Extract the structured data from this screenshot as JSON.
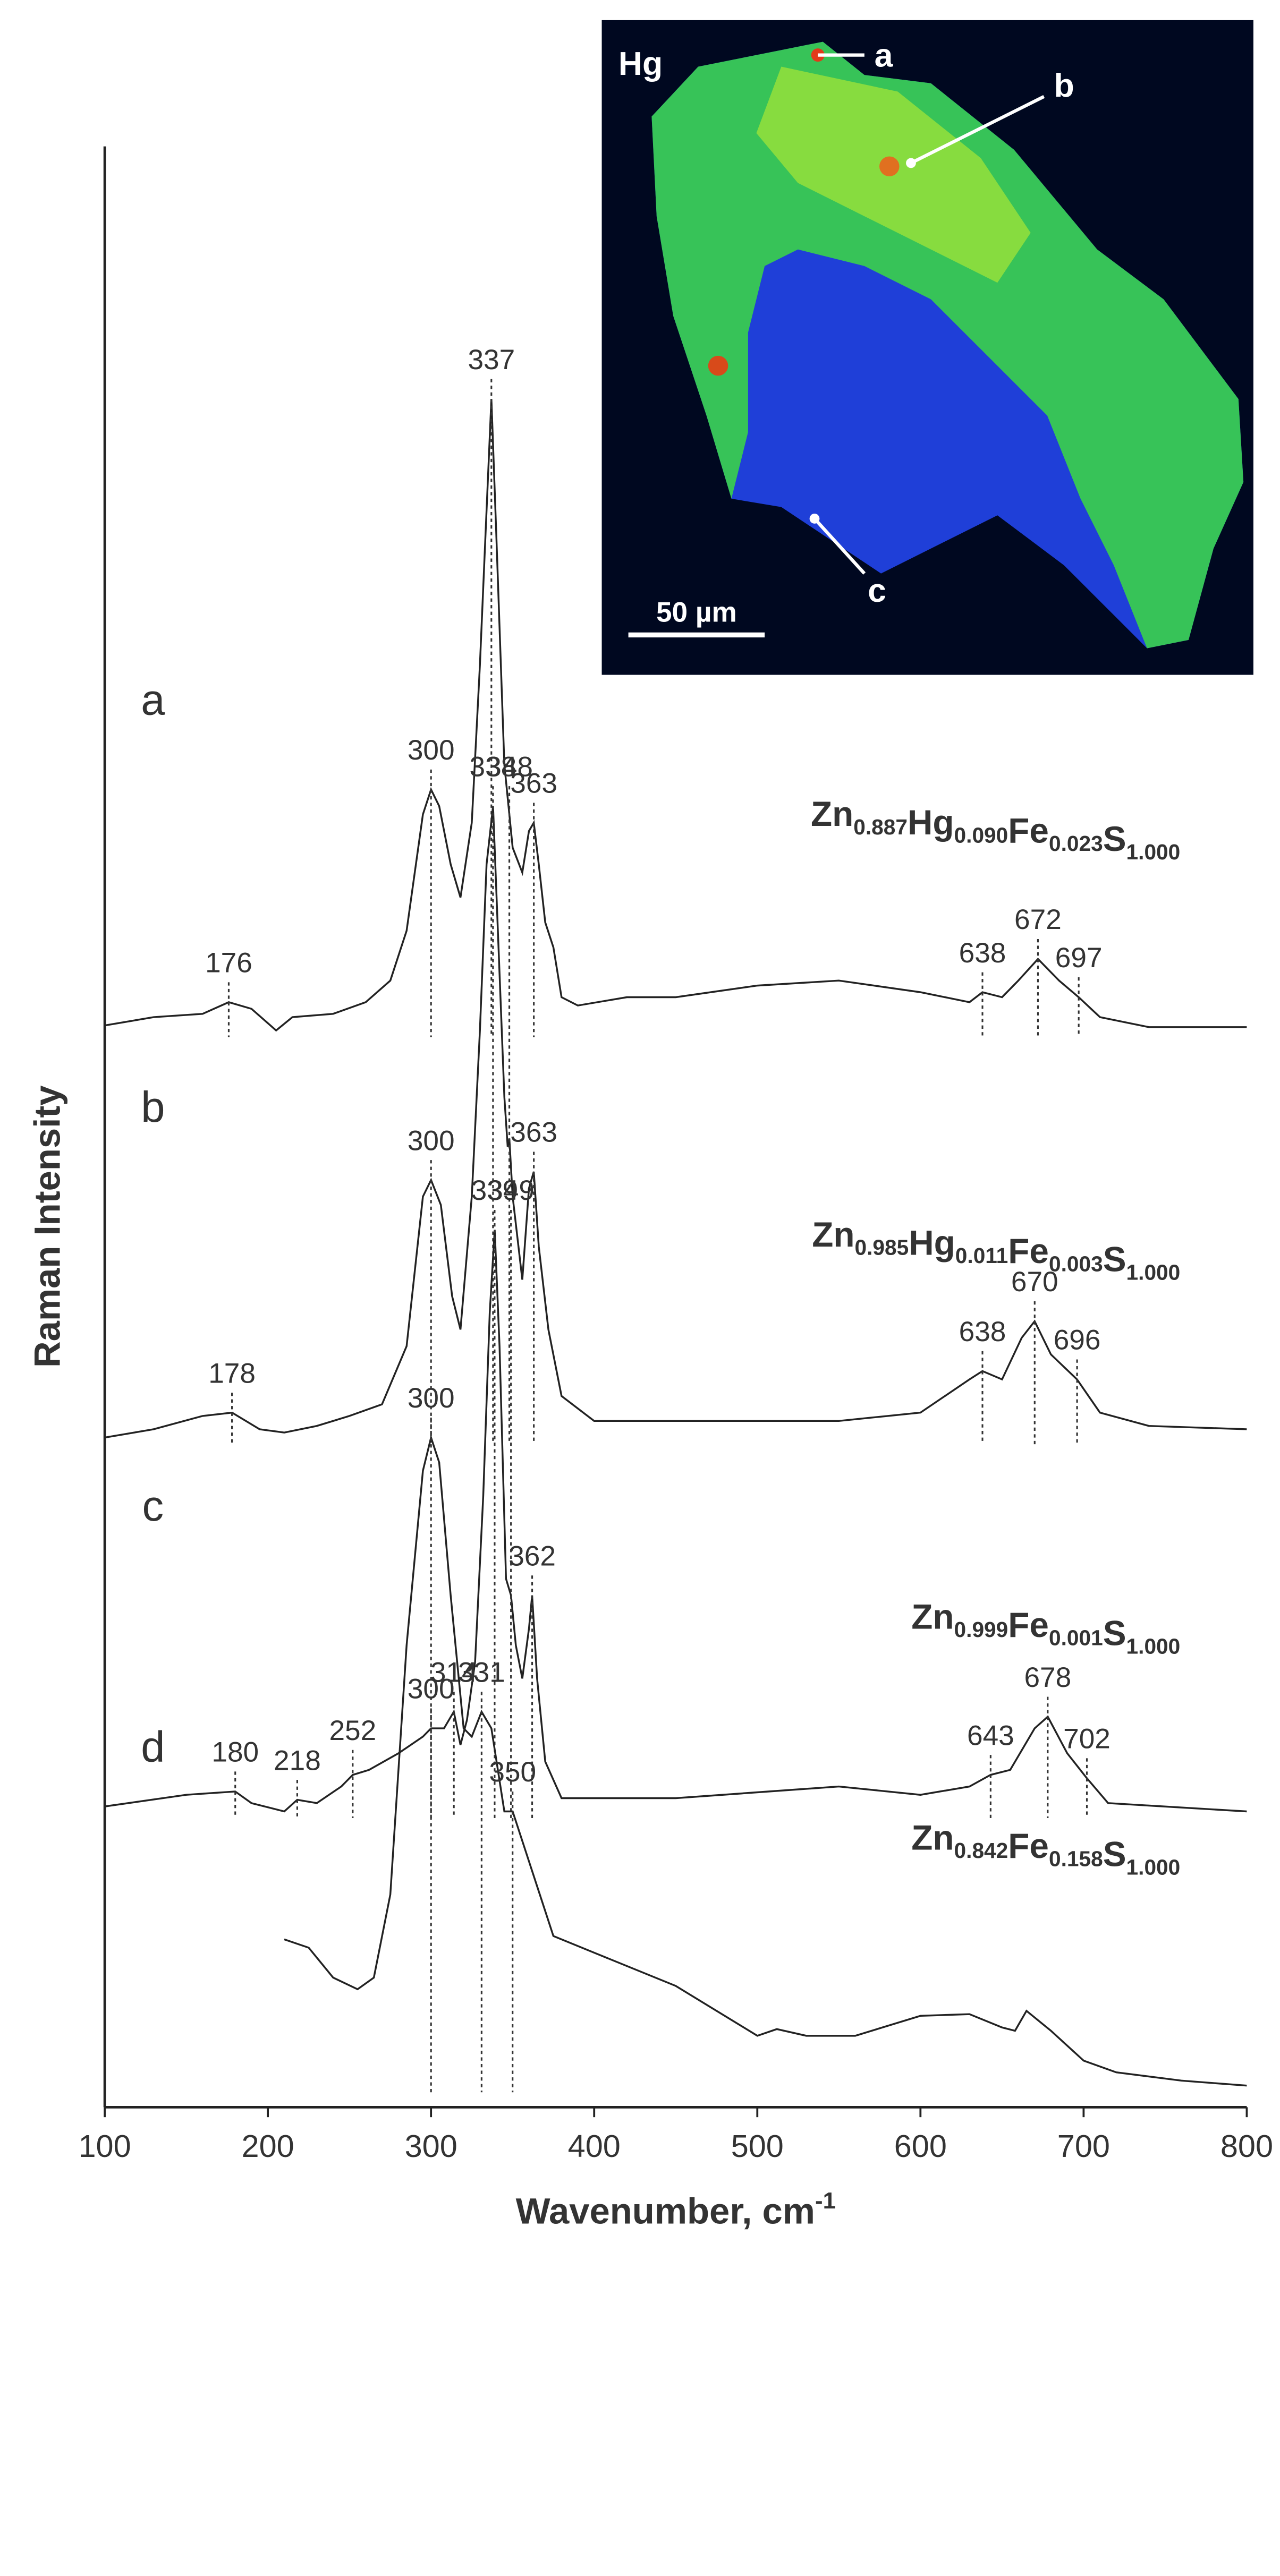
{
  "chart_data": {
    "type": "line",
    "x_label": {
      "text": "Wavenumber, cm",
      "sup": "-1"
    },
    "y_label": "Raman Intensity",
    "xlim": [
      100,
      800
    ],
    "xticks": [
      100,
      200,
      300,
      400,
      500,
      600,
      700,
      800
    ],
    "ylim": [
      0,
      1180
    ],
    "color": "#222222",
    "series": [
      {
        "name": "a",
        "formula": [
          {
            "el": "Zn",
            "sub": "0.887"
          },
          {
            "el": "Hg",
            "sub": "0.090"
          },
          {
            "el": "Fe",
            "sub": "0.023"
          },
          {
            "el": "S",
            "sub": "1.000"
          }
        ],
        "peaks": [
          176,
          300,
          337,
          363,
          638,
          672,
          697
        ],
        "x": [
          100,
          130,
          160,
          176,
          190,
          205,
          215,
          240,
          260,
          275,
          285,
          295,
          300,
          305,
          312,
          318,
          325,
          330,
          333,
          337,
          340,
          345,
          350,
          356,
          360,
          363,
          366,
          370,
          375,
          380,
          390,
          420,
          450,
          500,
          550,
          600,
          630,
          638,
          650,
          660,
          672,
          685,
          697,
          710,
          740,
          800
        ],
        "values": [
          651,
          656,
          658,
          665,
          661,
          648,
          656,
          658,
          665,
          678,
          708,
          778,
          793,
          783,
          748,
          728,
          773,
          868,
          938,
          1028,
          948,
          808,
          758,
          743,
          768,
          773,
          748,
          713,
          698,
          668,
          663,
          668,
          668,
          675,
          678,
          671,
          665,
          671,
          668,
          678,
          691,
          678,
          668,
          656,
          650,
          650
        ]
      },
      {
        "name": "b",
        "formula": [
          {
            "el": "Zn",
            "sub": "0.985"
          },
          {
            "el": "Hg",
            "sub": "0.011"
          },
          {
            "el": "Fe",
            "sub": "0.003"
          },
          {
            "el": "S",
            "sub": "1.000"
          }
        ],
        "peaks": [
          178,
          300,
          338,
          348,
          363,
          638,
          670,
          696
        ],
        "x": [
          100,
          130,
          160,
          178,
          195,
          210,
          230,
          250,
          270,
          285,
          295,
          300,
          306,
          313,
          318,
          325,
          330,
          334,
          338,
          341,
          345,
          347,
          348,
          350,
          356,
          360,
          363,
          366,
          372,
          380,
          400,
          450,
          500,
          550,
          600,
          630,
          638,
          650,
          662,
          670,
          680,
          696,
          710,
          740,
          800
        ],
        "values": [
          403,
          408,
          416,
          418,
          408,
          406,
          410,
          416,
          423,
          458,
          548,
          558,
          543,
          488,
          468,
          548,
          648,
          748,
          783,
          708,
          608,
          578,
          583,
          548,
          498,
          553,
          563,
          518,
          468,
          428,
          413,
          413,
          413,
          413,
          418,
          438,
          443,
          438,
          463,
          473,
          453,
          438,
          418,
          410,
          408
        ]
      },
      {
        "name": "c",
        "formula": [
          {
            "el": "Zn",
            "sub": "0.999"
          },
          {
            "el": "Fe",
            "sub": "0.001"
          },
          {
            "el": "S",
            "sub": "1.000"
          }
        ],
        "peaks": [
          180,
          218,
          252,
          300,
          314,
          339,
          349,
          362,
          643,
          678,
          702
        ],
        "x": [
          100,
          150,
          180,
          190,
          210,
          218,
          230,
          245,
          252,
          262,
          280,
          295,
          300,
          308,
          314,
          318,
          322,
          327,
          332,
          336,
          339,
          342,
          346,
          349,
          352,
          356,
          360,
          362,
          365,
          370,
          380,
          450,
          550,
          600,
          630,
          643,
          655,
          670,
          678,
          690,
          702,
          715,
          800
        ],
        "values": [
          181,
          188,
          190,
          183,
          178,
          185,
          183,
          193,
          200,
          203,
          213,
          223,
          228,
          228,
          238,
          218,
          233,
          268,
          368,
          478,
          528,
          458,
          318,
          308,
          278,
          258,
          288,
          308,
          258,
          208,
          186,
          186,
          193,
          188,
          193,
          200,
          203,
          228,
          235,
          213,
          198,
          183,
          178
        ]
      },
      {
        "name": "d",
        "formula": [
          {
            "el": "Zn",
            "sub": "0.842"
          },
          {
            "el": "Fe",
            "sub": "0.158"
          },
          {
            "el": "S",
            "sub": "1.000"
          }
        ],
        "peaks": [
          300,
          331,
          350
        ],
        "x": [
          210,
          225,
          240,
          255,
          265,
          275,
          285,
          295,
          300,
          305,
          312,
          320,
          325,
          331,
          337,
          345,
          350,
          360,
          375,
          400,
          450,
          500,
          512,
          530,
          560,
          600,
          630,
          650,
          658,
          665,
          680,
          700,
          720,
          760,
          800
        ],
        "values": [
          101,
          96,
          78,
          71,
          78,
          128,
          278,
          383,
          403,
          388,
          308,
          228,
          223,
          238,
          228,
          178,
          178,
          148,
          103,
          93,
          73,
          43,
          47,
          43,
          43,
          55,
          56,
          48,
          46,
          58,
          46,
          28,
          21,
          16,
          13
        ]
      }
    ],
    "inset": {
      "label": "Hg",
      "points": [
        "a",
        "b",
        "c"
      ],
      "scale_bar": "50 µm"
    }
  }
}
